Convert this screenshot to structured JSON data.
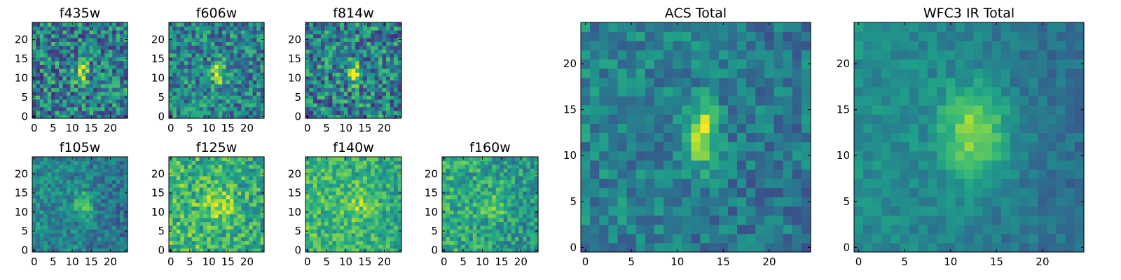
{
  "chart_data": [
    {
      "type": "heatmap",
      "title": "f435w",
      "xticks": [
        0,
        5,
        10,
        15,
        20
      ],
      "yticks": [
        0,
        5,
        10,
        15,
        20
      ],
      "xlim": [
        0,
        24
      ],
      "ylim": [
        0,
        24
      ],
      "grid_size": [
        25,
        25
      ],
      "colormap": "viridis",
      "peak": {
        "x": 12.5,
        "y": 11.5
      },
      "data_range": [
        0,
        1
      ]
    },
    {
      "type": "heatmap",
      "title": "f606w",
      "xticks": [
        0,
        5,
        10,
        15,
        20
      ],
      "yticks": [
        0,
        5,
        10,
        15,
        20
      ],
      "xlim": [
        0,
        24
      ],
      "ylim": [
        0,
        24
      ],
      "grid_size": [
        25,
        25
      ],
      "colormap": "viridis",
      "peak": {
        "x": 12.5,
        "y": 11.5
      },
      "data_range": [
        0,
        1
      ]
    },
    {
      "type": "heatmap",
      "title": "f814w",
      "xticks": [
        0,
        5,
        10,
        15,
        20
      ],
      "yticks": [
        0,
        5,
        10,
        15,
        20
      ],
      "xlim": [
        0,
        24
      ],
      "ylim": [
        0,
        24
      ],
      "grid_size": [
        25,
        25
      ],
      "colormap": "viridis",
      "peak": {
        "x": 12.5,
        "y": 11.5
      },
      "data_range": [
        0,
        1
      ]
    },
    {
      "type": "heatmap",
      "title": "f105w",
      "xticks": [
        0,
        5,
        10,
        15,
        20
      ],
      "yticks": [
        0,
        5,
        10,
        15,
        20
      ],
      "xlim": [
        0,
        24
      ],
      "ylim": [
        0,
        24
      ],
      "grid_size": [
        25,
        25
      ],
      "colormap": "viridis",
      "peak": {
        "x": 13,
        "y": 12
      },
      "data_range": [
        0,
        1
      ]
    },
    {
      "type": "heatmap",
      "title": "f125w",
      "xticks": [
        0,
        5,
        10,
        15,
        20
      ],
      "yticks": [
        0,
        5,
        10,
        15,
        20
      ],
      "xlim": [
        0,
        24
      ],
      "ylim": [
        0,
        24
      ],
      "grid_size": [
        25,
        25
      ],
      "colormap": "viridis",
      "peak": {
        "x": 13,
        "y": 12
      },
      "data_range": [
        0,
        1
      ]
    },
    {
      "type": "heatmap",
      "title": "f140w",
      "xticks": [
        0,
        5,
        10,
        15,
        20
      ],
      "yticks": [
        0,
        5,
        10,
        15,
        20
      ],
      "xlim": [
        0,
        24
      ],
      "ylim": [
        0,
        24
      ],
      "grid_size": [
        25,
        25
      ],
      "colormap": "viridis",
      "peak": {
        "x": 13,
        "y": 12
      },
      "data_range": [
        0,
        1
      ]
    },
    {
      "type": "heatmap",
      "title": "f160w",
      "xticks": [
        0,
        5,
        10,
        15,
        20
      ],
      "yticks": [
        0,
        5,
        10,
        15,
        20
      ],
      "xlim": [
        0,
        24
      ],
      "ylim": [
        0,
        24
      ],
      "grid_size": [
        25,
        25
      ],
      "colormap": "viridis",
      "peak": {
        "x": 13,
        "y": 12
      },
      "data_range": [
        0,
        1
      ]
    },
    {
      "type": "heatmap",
      "title": "ACS Total",
      "xticks": [
        0,
        5,
        10,
        15,
        20
      ],
      "yticks": [
        0,
        5,
        10,
        15,
        20
      ],
      "xlim": [
        0,
        24
      ],
      "ylim": [
        0,
        24
      ],
      "grid_size": [
        25,
        25
      ],
      "colormap": "viridis",
      "peak": {
        "x": 12.5,
        "y": 12.5
      },
      "data_range": [
        0,
        1
      ]
    },
    {
      "type": "heatmap",
      "title": "WFC3 IR Total",
      "xticks": [
        0,
        5,
        10,
        15,
        20
      ],
      "yticks": [
        0,
        5,
        10,
        15,
        20
      ],
      "xlim": [
        0,
        24
      ],
      "ylim": [
        0,
        24
      ],
      "grid_size": [
        25,
        25
      ],
      "colormap": "viridis",
      "peak": {
        "x": 12.5,
        "y": 12.5
      },
      "data_range": [
        0,
        1
      ]
    }
  ]
}
